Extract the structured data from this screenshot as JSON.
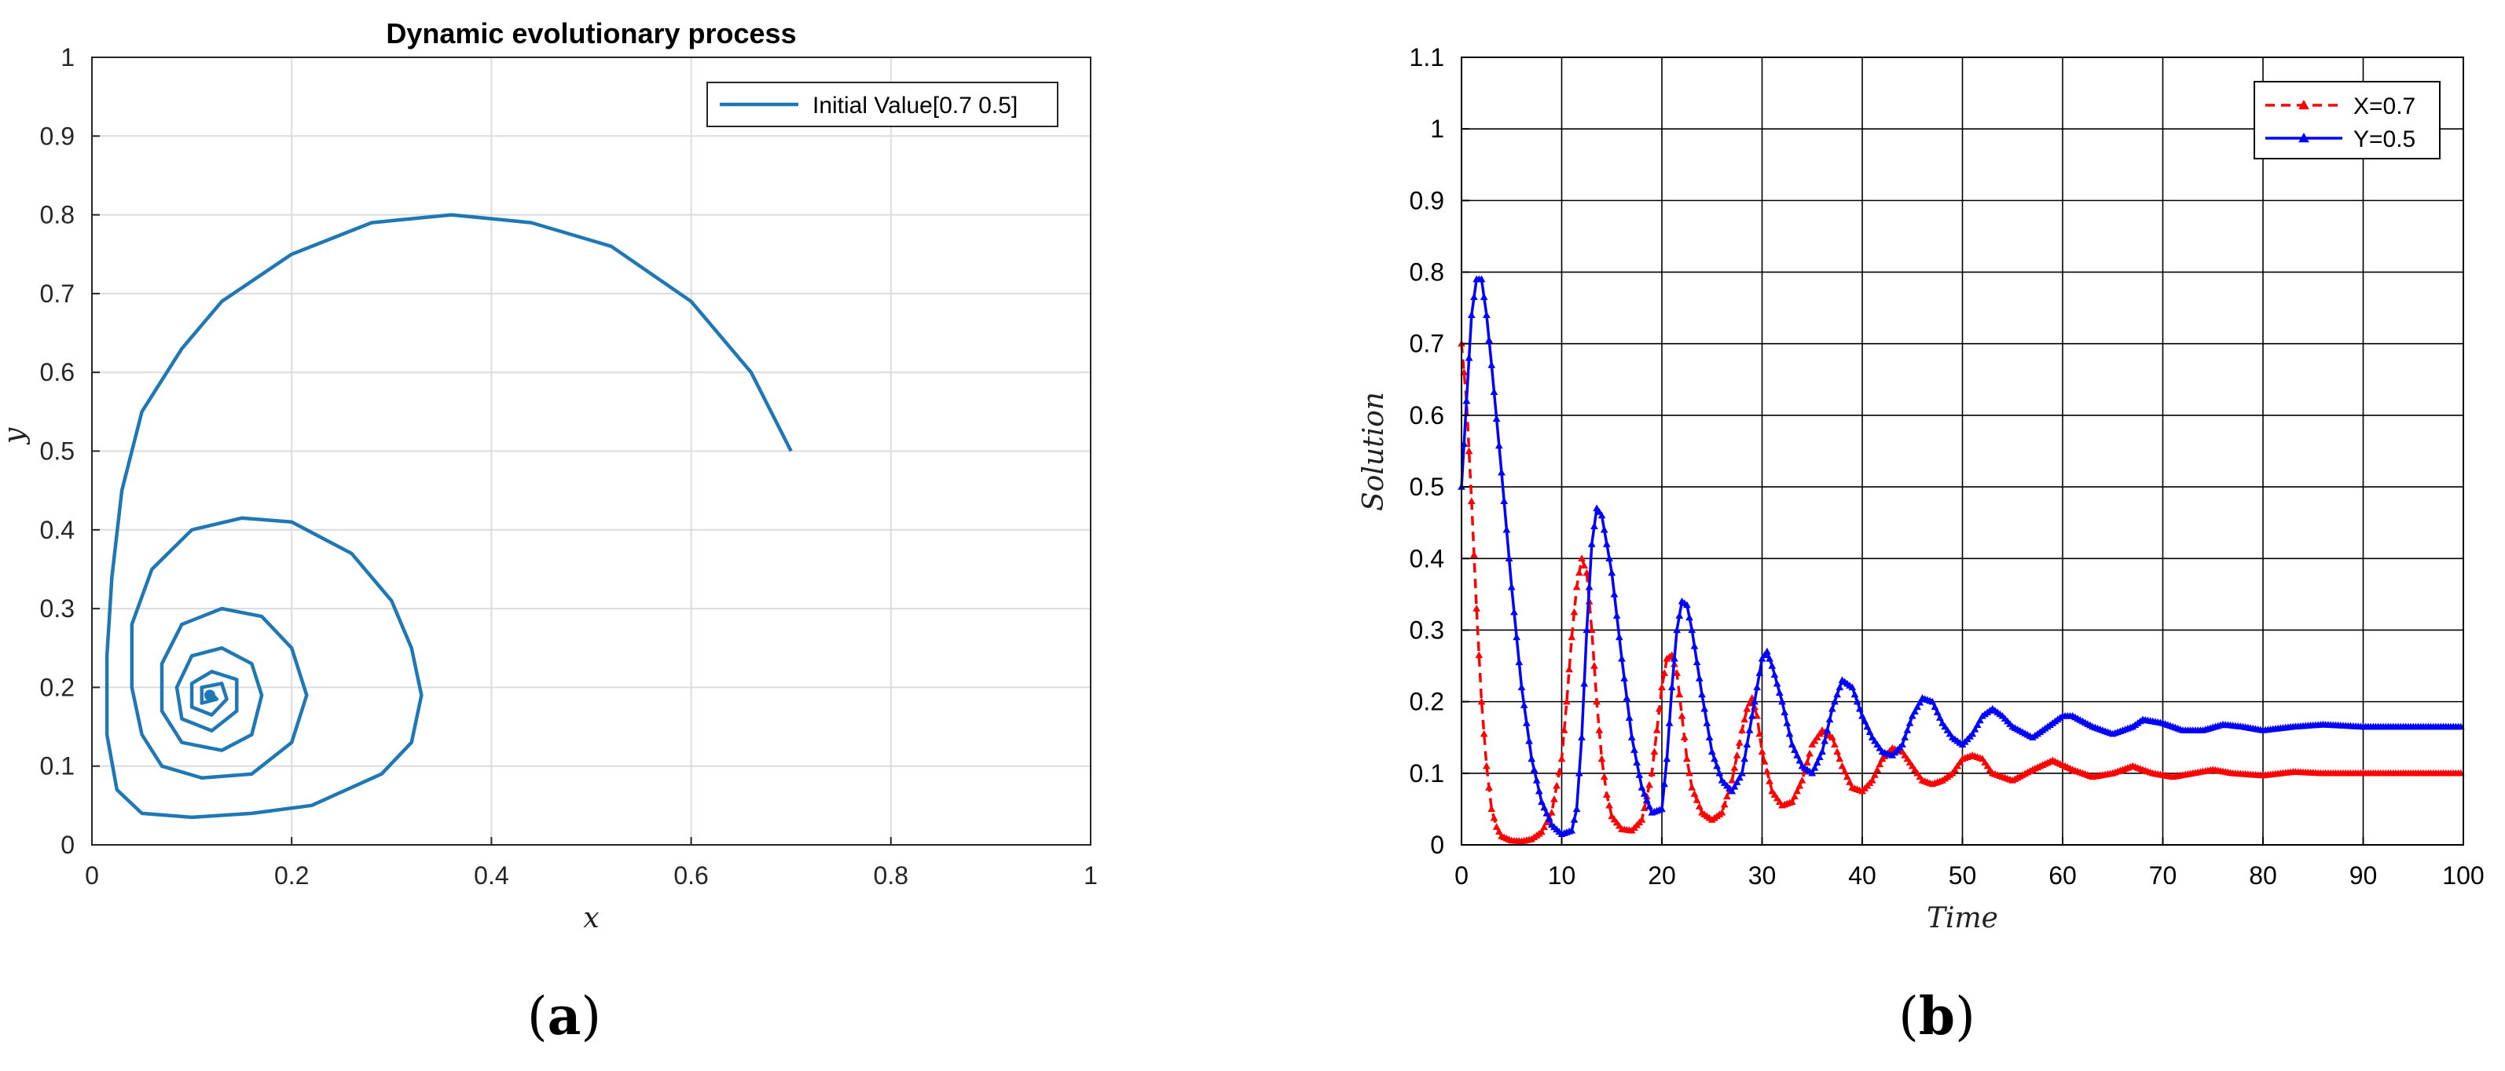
{
  "panels": [
    {
      "label_open": "(",
      "label_letter": "a",
      "label_close": ")"
    },
    {
      "label_open": "(",
      "label_letter": "b",
      "label_close": ")"
    }
  ],
  "colors": {
    "matlab_blue": "#1f77b4",
    "red": "#ff0000",
    "blue": "#0000ff",
    "grid_light": "#dcdcdc",
    "grid_dark": "#000000"
  },
  "chart_data": [
    {
      "type": "line",
      "title": "Dynamic evolutionary process",
      "xlabel": "x",
      "ylabel": "y",
      "xlim": [
        0,
        1
      ],
      "ylim": [
        0,
        1
      ],
      "xticks": [
        "0",
        "0.2",
        "0.4",
        "0.6",
        "0.8",
        "1"
      ],
      "yticks": [
        "0",
        "0.1",
        "0.2",
        "0.3",
        "0.4",
        "0.5",
        "0.6",
        "0.7",
        "0.8",
        "0.9",
        "1"
      ],
      "grid": true,
      "legend_position": "top-right",
      "series": [
        {
          "name": "Initial Value[0.7 0.5]",
          "color": "#1f77b4",
          "points": [
            [
              0.7,
              0.5
            ],
            [
              0.66,
              0.6
            ],
            [
              0.6,
              0.69
            ],
            [
              0.52,
              0.76
            ],
            [
              0.44,
              0.79
            ],
            [
              0.36,
              0.8
            ],
            [
              0.28,
              0.79
            ],
            [
              0.2,
              0.75
            ],
            [
              0.13,
              0.69
            ],
            [
              0.09,
              0.63
            ],
            [
              0.05,
              0.55
            ],
            [
              0.03,
              0.45
            ],
            [
              0.02,
              0.34
            ],
            [
              0.015,
              0.24
            ],
            [
              0.015,
              0.14
            ],
            [
              0.025,
              0.07
            ],
            [
              0.05,
              0.04
            ],
            [
              0.1,
              0.035
            ],
            [
              0.16,
              0.04
            ],
            [
              0.22,
              0.05
            ],
            [
              0.29,
              0.09
            ],
            [
              0.32,
              0.13
            ],
            [
              0.33,
              0.19
            ],
            [
              0.32,
              0.25
            ],
            [
              0.3,
              0.31
            ],
            [
              0.26,
              0.37
            ],
            [
              0.2,
              0.41
            ],
            [
              0.15,
              0.415
            ],
            [
              0.1,
              0.4
            ],
            [
              0.06,
              0.35
            ],
            [
              0.04,
              0.28
            ],
            [
              0.04,
              0.2
            ],
            [
              0.05,
              0.14
            ],
            [
              0.07,
              0.1
            ],
            [
              0.11,
              0.085
            ],
            [
              0.16,
              0.09
            ],
            [
              0.2,
              0.13
            ],
            [
              0.215,
              0.19
            ],
            [
              0.2,
              0.25
            ],
            [
              0.17,
              0.29
            ],
            [
              0.13,
              0.3
            ],
            [
              0.09,
              0.28
            ],
            [
              0.07,
              0.23
            ],
            [
              0.07,
              0.17
            ],
            [
              0.09,
              0.13
            ],
            [
              0.13,
              0.12
            ],
            [
              0.16,
              0.14
            ],
            [
              0.17,
              0.19
            ],
            [
              0.16,
              0.23
            ],
            [
              0.13,
              0.25
            ],
            [
              0.1,
              0.24
            ],
            [
              0.085,
              0.2
            ],
            [
              0.09,
              0.16
            ],
            [
              0.12,
              0.145
            ],
            [
              0.145,
              0.17
            ],
            [
              0.145,
              0.21
            ],
            [
              0.12,
              0.22
            ],
            [
              0.1,
              0.205
            ],
            [
              0.1,
              0.175
            ],
            [
              0.12,
              0.165
            ],
            [
              0.135,
              0.185
            ],
            [
              0.13,
              0.205
            ],
            [
              0.11,
              0.2
            ],
            [
              0.11,
              0.18
            ],
            [
              0.125,
              0.185
            ],
            [
              0.118,
              0.194
            ],
            [
              0.115,
              0.188
            ],
            [
              0.118,
              0.19
            ]
          ]
        }
      ]
    },
    {
      "type": "line",
      "title": "",
      "xlabel": "Time",
      "ylabel": "Solution",
      "xlim": [
        0,
        100
      ],
      "ylim": [
        0,
        1.1
      ],
      "xticks": [
        "0",
        "10",
        "20",
        "30",
        "40",
        "50",
        "60",
        "70",
        "80",
        "90",
        "100"
      ],
      "yticks": [
        "0",
        "0.1",
        "0.2",
        "0.3",
        "0.4",
        "0.5",
        "0.6",
        "0.7",
        "0.8",
        "0.9",
        "1",
        "1.1"
      ],
      "grid": true,
      "legend_position": "top-right",
      "series": [
        {
          "name": "X=0.7",
          "color": "#ff0000",
          "style": "dashed-triangle",
          "points": [
            [
              0,
              0.7
            ],
            [
              0.5,
              0.62
            ],
            [
              1,
              0.48
            ],
            [
              1.5,
              0.33
            ],
            [
              2,
              0.2
            ],
            [
              2.5,
              0.11
            ],
            [
              3,
              0.05
            ],
            [
              3.5,
              0.025
            ],
            [
              4,
              0.012
            ],
            [
              5,
              0.006
            ],
            [
              6,
              0.005
            ],
            [
              7,
              0.008
            ],
            [
              8,
              0.018
            ],
            [
              9,
              0.045
            ],
            [
              10,
              0.12
            ],
            [
              10.5,
              0.2
            ],
            [
              11,
              0.29
            ],
            [
              11.5,
              0.36
            ],
            [
              12,
              0.4
            ],
            [
              12.5,
              0.38
            ],
            [
              13,
              0.3
            ],
            [
              13.5,
              0.2
            ],
            [
              14,
              0.12
            ],
            [
              14.5,
              0.07
            ],
            [
              15,
              0.04
            ],
            [
              16,
              0.022
            ],
            [
              17,
              0.02
            ],
            [
              18,
              0.035
            ],
            [
              19,
              0.1
            ],
            [
              19.5,
              0.16
            ],
            [
              20,
              0.22
            ],
            [
              20.5,
              0.26
            ],
            [
              21,
              0.265
            ],
            [
              21.5,
              0.24
            ],
            [
              22,
              0.18
            ],
            [
              22.5,
              0.12
            ],
            [
              23,
              0.08
            ],
            [
              24,
              0.045
            ],
            [
              25,
              0.035
            ],
            [
              26,
              0.045
            ],
            [
              27,
              0.09
            ],
            [
              28,
              0.16
            ],
            [
              28.5,
              0.19
            ],
            [
              29,
              0.205
            ],
            [
              29.5,
              0.18
            ],
            [
              30,
              0.13
            ],
            [
              31,
              0.075
            ],
            [
              32,
              0.055
            ],
            [
              33,
              0.06
            ],
            [
              34,
              0.09
            ],
            [
              35,
              0.14
            ],
            [
              36,
              0.16
            ],
            [
              37,
              0.15
            ],
            [
              38,
              0.11
            ],
            [
              39,
              0.08
            ],
            [
              40,
              0.075
            ],
            [
              41,
              0.09
            ],
            [
              42,
              0.12
            ],
            [
              43,
              0.135
            ],
            [
              44,
              0.13
            ],
            [
              45,
              0.11
            ],
            [
              46,
              0.09
            ],
            [
              47,
              0.085
            ],
            [
              48,
              0.09
            ],
            [
              49,
              0.1
            ],
            [
              50,
              0.12
            ],
            [
              51,
              0.125
            ],
            [
              52,
              0.12
            ],
            [
              53,
              0.1
            ],
            [
              55,
              0.09
            ],
            [
              57,
              0.105
            ],
            [
              59,
              0.118
            ],
            [
              61,
              0.105
            ],
            [
              63,
              0.095
            ],
            [
              65,
              0.1
            ],
            [
              67,
              0.11
            ],
            [
              69,
              0.1
            ],
            [
              71,
              0.095
            ],
            [
              73,
              0.1
            ],
            [
              75,
              0.105
            ],
            [
              77,
              0.1
            ],
            [
              80,
              0.097
            ],
            [
              83,
              0.102
            ],
            [
              86,
              0.1
            ],
            [
              90,
              0.1
            ],
            [
              95,
              0.1
            ],
            [
              100,
              0.1
            ]
          ]
        },
        {
          "name": "Y=0.5",
          "color": "#0000ff",
          "style": "solid-triangle",
          "points": [
            [
              0,
              0.5
            ],
            [
              0.5,
              0.62
            ],
            [
              1,
              0.74
            ],
            [
              1.5,
              0.79
            ],
            [
              2,
              0.79
            ],
            [
              2.5,
              0.74
            ],
            [
              3,
              0.67
            ],
            [
              4,
              0.52
            ],
            [
              5,
              0.36
            ],
            [
              6,
              0.22
            ],
            [
              7,
              0.12
            ],
            [
              8,
              0.06
            ],
            [
              9,
              0.028
            ],
            [
              10,
              0.015
            ],
            [
              11,
              0.02
            ],
            [
              11.5,
              0.05
            ],
            [
              12,
              0.15
            ],
            [
              12.5,
              0.3
            ],
            [
              13,
              0.42
            ],
            [
              13.5,
              0.47
            ],
            [
              14,
              0.46
            ],
            [
              15,
              0.38
            ],
            [
              16,
              0.26
            ],
            [
              17,
              0.15
            ],
            [
              18,
              0.08
            ],
            [
              19,
              0.045
            ],
            [
              20,
              0.05
            ],
            [
              20.5,
              0.12
            ],
            [
              21,
              0.22
            ],
            [
              21.5,
              0.3
            ],
            [
              22,
              0.34
            ],
            [
              22.5,
              0.335
            ],
            [
              23,
              0.3
            ],
            [
              24,
              0.21
            ],
            [
              25,
              0.13
            ],
            [
              26,
              0.09
            ],
            [
              27,
              0.075
            ],
            [
              28,
              0.1
            ],
            [
              29,
              0.18
            ],
            [
              30,
              0.26
            ],
            [
              30.5,
              0.27
            ],
            [
              31,
              0.25
            ],
            [
              32,
              0.2
            ],
            [
              33,
              0.14
            ],
            [
              34,
              0.11
            ],
            [
              35,
              0.1
            ],
            [
              36,
              0.13
            ],
            [
              37,
              0.19
            ],
            [
              38,
              0.23
            ],
            [
              39,
              0.22
            ],
            [
              40,
              0.18
            ],
            [
              41,
              0.15
            ],
            [
              42,
              0.13
            ],
            [
              43,
              0.125
            ],
            [
              44,
              0.14
            ],
            [
              45,
              0.18
            ],
            [
              46,
              0.205
            ],
            [
              47,
              0.2
            ],
            [
              48,
              0.17
            ],
            [
              49,
              0.15
            ],
            [
              50,
              0.14
            ],
            [
              51,
              0.155
            ],
            [
              52,
              0.18
            ],
            [
              53,
              0.19
            ],
            [
              54,
              0.18
            ],
            [
              55,
              0.165
            ],
            [
              57,
              0.15
            ],
            [
              59,
              0.17
            ],
            [
              60,
              0.18
            ],
            [
              61,
              0.18
            ],
            [
              63,
              0.165
            ],
            [
              65,
              0.155
            ],
            [
              67,
              0.165
            ],
            [
              68,
              0.175
            ],
            [
              70,
              0.17
            ],
            [
              72,
              0.16
            ],
            [
              74,
              0.16
            ],
            [
              76,
              0.168
            ],
            [
              78,
              0.165
            ],
            [
              80,
              0.16
            ],
            [
              83,
              0.165
            ],
            [
              86,
              0.168
            ],
            [
              90,
              0.165
            ],
            [
              95,
              0.165
            ],
            [
              100,
              0.165
            ]
          ]
        }
      ]
    }
  ]
}
